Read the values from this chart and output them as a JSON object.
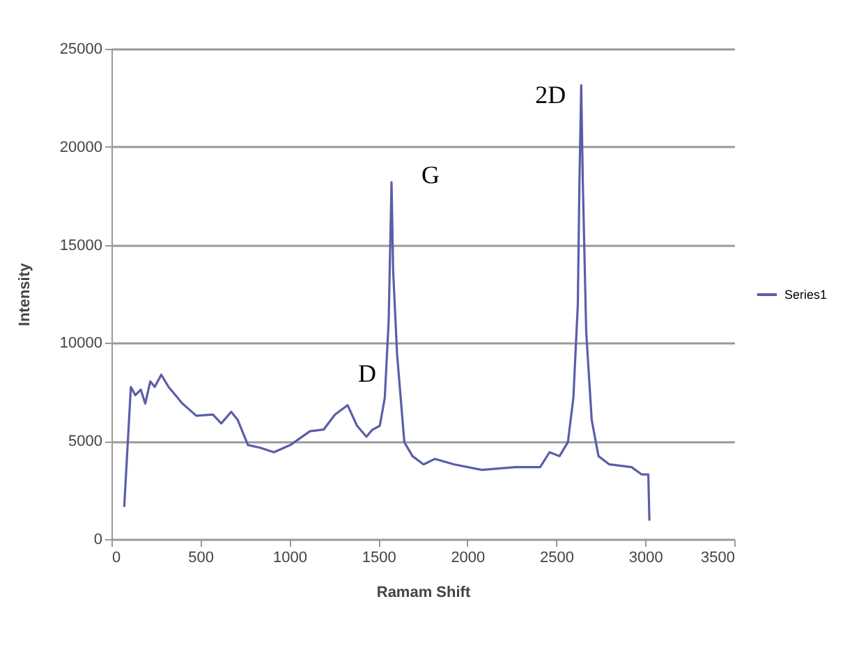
{
  "chart_data": {
    "type": "line",
    "xlabel": "Ramam Shift",
    "ylabel": "Intensity",
    "xlim": [
      0,
      3500
    ],
    "xticks": [
      0,
      500,
      1000,
      1500,
      2000,
      2500,
      3000,
      3500
    ],
    "ylim": [
      0,
      25000
    ],
    "yticks": [
      0,
      5000,
      10000,
      15000,
      20000,
      25000
    ],
    "grid": "y",
    "legend": "right",
    "line_style": "solid",
    "marker": "none",
    "annotations": [
      {
        "text": "D",
        "x": 1327,
        "y": 6830
      },
      {
        "text": "G",
        "x": 1574,
        "y": 18200
      },
      {
        "text": "2D",
        "x": 2640,
        "y": 23140
      }
    ],
    "series": [
      {
        "name": "Series1",
        "color": "#5a5ea8",
        "x": [
          72,
          109,
          134,
          165,
          190,
          218,
          243,
          280,
          321,
          399,
          477,
          570,
          617,
          673,
          710,
          767,
          835,
          913,
          1006,
          1115,
          1193,
          1256,
          1327,
          1380,
          1433,
          1464,
          1508,
          1536,
          1558,
          1574,
          1583,
          1605,
          1646,
          1692,
          1754,
          1817,
          1926,
          2082,
          2269,
          2409,
          2462,
          2518,
          2565,
          2596,
          2621,
          2630,
          2640,
          2649,
          2668,
          2699,
          2737,
          2798,
          2923,
          2979,
          3017,
          3023
        ],
        "values": [
          1690,
          7760,
          7340,
          7620,
          6910,
          8040,
          7760,
          8380,
          7760,
          6910,
          6290,
          6350,
          5900,
          6490,
          6070,
          4800,
          4660,
          4430,
          4800,
          5500,
          5590,
          6350,
          6830,
          5780,
          5220,
          5560,
          5780,
          7200,
          11150,
          18200,
          13700,
          9450,
          4940,
          4230,
          3810,
          4090,
          3810,
          3530,
          3670,
          3670,
          4430,
          4230,
          4940,
          7200,
          11990,
          18200,
          23140,
          18200,
          10580,
          6070,
          4230,
          3810,
          3670,
          3300,
          3300,
          990
        ]
      }
    ]
  }
}
